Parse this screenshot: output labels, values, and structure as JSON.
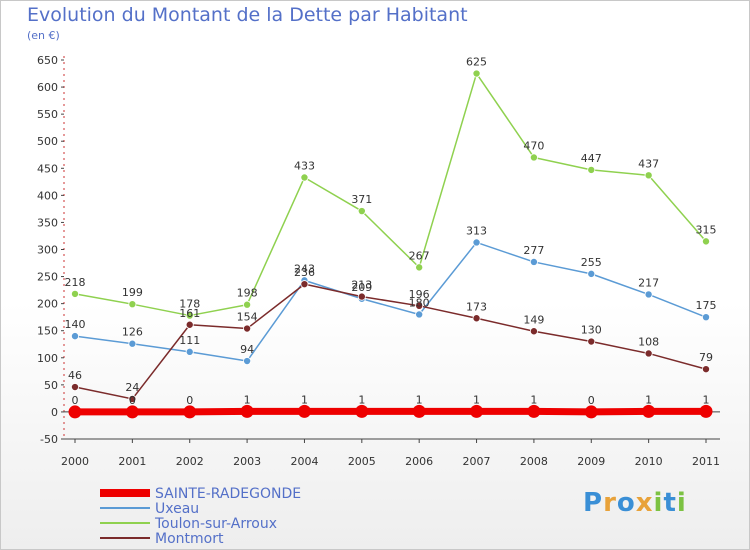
{
  "title": "Evolution du Montant de la Dette par Habitant",
  "unit_label": "(en €)",
  "logo": {
    "text": "Proxiti",
    "letters": [
      {
        "ch": "P",
        "color": "#3a8fd6"
      },
      {
        "ch": "r",
        "color": "#e8a23a"
      },
      {
        "ch": "o",
        "color": "#3a8fd6"
      },
      {
        "ch": "x",
        "color": "#e8a23a"
      },
      {
        "ch": "i",
        "color": "#7cc242"
      },
      {
        "ch": "t",
        "color": "#3a8fd6"
      },
      {
        "ch": "i",
        "color": "#7cc242"
      }
    ]
  },
  "chart_data": {
    "type": "line",
    "x": [
      "2000",
      "2001",
      "2002",
      "2003",
      "2004",
      "2005",
      "2006",
      "2007",
      "2008",
      "2009",
      "2010",
      "2011"
    ],
    "ylim": [
      -50,
      650
    ],
    "yticks": [
      -50,
      0,
      50,
      100,
      150,
      200,
      250,
      300,
      350,
      400,
      450,
      500,
      550,
      600,
      650
    ],
    "grid": false,
    "legend_position": "bottom-left",
    "series": [
      {
        "name": "SAINTE-RADEGONDE",
        "color": "#ee0000",
        "values": [
          0,
          0,
          0,
          1,
          1,
          1,
          1,
          1,
          1,
          0,
          1,
          1
        ],
        "labels": [
          "0",
          "0",
          "0",
          "1",
          "1",
          "1",
          "1",
          "1",
          "1",
          "0",
          "1",
          "1"
        ]
      },
      {
        "name": "Uxeau",
        "color": "#5b9bd5",
        "values": [
          140,
          126,
          111,
          94,
          243,
          209,
          180,
          313,
          277,
          255,
          217,
          175
        ],
        "labels": [
          "140",
          "126",
          "111",
          "94",
          "243",
          "209",
          "180",
          "313",
          "277",
          "255",
          "217",
          "175"
        ]
      },
      {
        "name": "Toulon-sur-Arroux",
        "color": "#8fd14f",
        "values": [
          218,
          199,
          178,
          198,
          433,
          371,
          267,
          625,
          470,
          447,
          437,
          315
        ],
        "labels": [
          "218",
          "199",
          "178",
          "198",
          "433",
          "371",
          "267",
          "625",
          "470",
          "447",
          "437",
          "315"
        ]
      },
      {
        "name": "Montmort",
        "color": "#7b2b2b",
        "values": [
          46,
          24,
          161,
          154,
          236,
          213,
          196,
          173,
          149,
          130,
          108,
          79
        ],
        "labels": [
          "46",
          "24",
          "161",
          "154",
          "236",
          "213",
          "196",
          "173",
          "149",
          "130",
          "108",
          "79"
        ]
      }
    ]
  }
}
